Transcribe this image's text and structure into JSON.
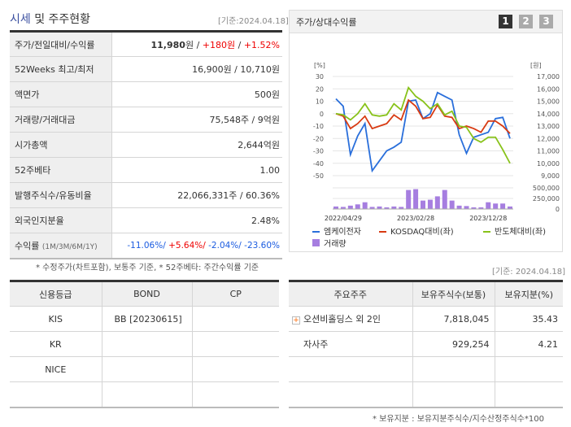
{
  "title": {
    "highlight": "시세",
    "rest": " 및 주주현황",
    "date": "[기준:2024.04.18]"
  },
  "market": [
    {
      "label": "주가/전일대비/수익률",
      "price": "11,980",
      "unit": "원 / ",
      "change": "+180원",
      "sep": " / ",
      "rate": "+1.52%"
    },
    {
      "label": "52Weeks 최고/최저",
      "value": "16,900원 / 10,710원"
    },
    {
      "label": "액면가",
      "value": "500원"
    },
    {
      "label": "거래량/거래대금",
      "value": "75,548주 / 9억원"
    },
    {
      "label": "시가총액",
      "value": "2,644억원"
    },
    {
      "label": "52주베타",
      "value": "1.00"
    },
    {
      "label": "발행주식수/유동비율",
      "value": "22,066,331주 / 60.36%"
    },
    {
      "label": "외국인지분율",
      "value": "2.48%"
    },
    {
      "label": "수익률",
      "sub": "(1M/3M/6M/1Y)",
      "r1": "-11.06%/",
      "r2": " +5.64%/",
      "r3": " -2.04%/",
      "r4": " -23.60%"
    }
  ],
  "market_note": "* 수정주가(차트포함), 보통주 기준, * 52주베타: 주간수익률 기준",
  "chart_title": "주가/상대수익률",
  "chart_tabs": [
    "1",
    "2",
    "3"
  ],
  "chart_data": {
    "type": "line",
    "x_ticks": [
      "2022/04/29",
      "2023/02/28",
      "2023/12/28"
    ],
    "left_axis": {
      "unit": "[%]",
      "ticks": [
        30,
        20,
        10,
        0,
        -10,
        -20,
        -30,
        -40,
        -50
      ],
      "range": [
        -50,
        30
      ]
    },
    "right_axis": {
      "unit": "[원]",
      "ticks": [
        "17,000",
        "16,000",
        "15,000",
        "14,000",
        "13,000",
        "12,000",
        "11,000",
        "10,000",
        "9,000"
      ],
      "range": [
        9000,
        17000
      ]
    },
    "volume_axis": {
      "ticks": [
        "500,000",
        "250,000",
        "0"
      ],
      "range": [
        0,
        500000
      ]
    },
    "series": [
      {
        "name": "엠케이전자",
        "color": "#2a6fdb",
        "values": [
          12,
          6,
          -33,
          -18,
          -8,
          -46,
          -38,
          -30,
          -27,
          -23,
          10,
          11,
          -4,
          0,
          17,
          14,
          11,
          -17,
          -32,
          -19,
          -17,
          -15,
          -4,
          -3,
          -20
        ]
      },
      {
        "name": "KOSDAQ대비(좌)",
        "color": "#d83a12",
        "values": [
          0,
          -2,
          -12,
          -8,
          -2,
          -12,
          -10,
          -8,
          -1,
          -5,
          11,
          6,
          -4,
          -3,
          7,
          -2,
          -3,
          -12,
          -10,
          -12,
          -15,
          -6,
          -6,
          -10,
          -16
        ]
      },
      {
        "name": "반도체대비(좌)",
        "color": "#88c21a",
        "values": [
          0,
          -1,
          -5,
          0,
          8,
          -1,
          -2,
          -1,
          8,
          3,
          21,
          14,
          10,
          4,
          8,
          -1,
          2,
          -10,
          -11,
          -20,
          -23,
          -19,
          -19,
          -29,
          -40
        ]
      }
    ],
    "volume": {
      "name": "거래량",
      "color": "#a67ee0",
      "values": [
        60000,
        50000,
        80000,
        110000,
        160000,
        50000,
        60000,
        40000,
        60000,
        50000,
        450000,
        470000,
        200000,
        220000,
        300000,
        450000,
        200000,
        80000,
        70000,
        40000,
        40000,
        160000,
        130000,
        130000,
        60000
      ]
    }
  },
  "credit": {
    "headers": [
      "신용등급",
      "BOND",
      "CP"
    ],
    "rows": [
      [
        "KIS",
        "BB  [20230615]",
        ""
      ],
      [
        "KR",
        "",
        ""
      ],
      [
        "NICE",
        "",
        ""
      ],
      [
        "",
        "",
        ""
      ]
    ]
  },
  "holders": {
    "date": "[기준: 2024.04.18]",
    "headers": [
      "주요주주",
      "보유주식수(보통)",
      "보유지분(%)"
    ],
    "rows": [
      [
        "오션비홀딩스 외 2인",
        "7,818,045",
        "35.43"
      ],
      [
        "자사주",
        "929,254",
        "4.21"
      ],
      [
        "",
        "",
        ""
      ],
      [
        "",
        "",
        ""
      ]
    ],
    "note": "* 보유지분 : 보유지분주식수/지수산정주식수*100"
  }
}
